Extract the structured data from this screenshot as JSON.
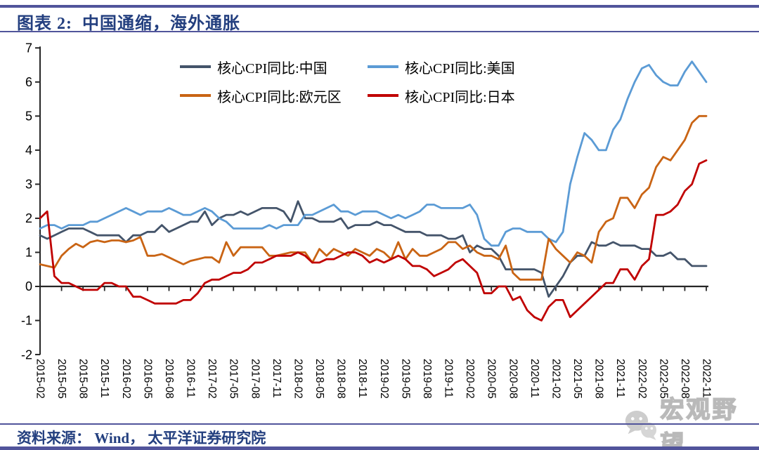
{
  "header": {
    "title": "图表 2:  中国通缩，海外通胀"
  },
  "footer": {
    "source": "资料来源： Wind， 太平洋证券研究院"
  },
  "watermark": {
    "label": "宏观野望",
    "icon": "wechat-icon"
  },
  "colors": {
    "rule": "#51549B",
    "heading_text": "#233F7F",
    "axis": "#262626",
    "tick_label": "#000000",
    "watermark_gray": "#c9c9c9"
  },
  "chart_data": {
    "type": "line",
    "title": "图表 2: 中国通缩，海外通胀",
    "xlabel": "",
    "ylabel": "",
    "ylim": [
      -2,
      7
    ],
    "y_ticks": [
      -2,
      -1,
      0,
      1,
      2,
      3,
      4,
      5,
      6,
      7
    ],
    "grid": false,
    "legend_position": "top-inside",
    "x_tick_every": 3,
    "x": [
      "2015-02",
      "2015-03",
      "2015-04",
      "2015-05",
      "2015-06",
      "2015-07",
      "2015-08",
      "2015-09",
      "2015-10",
      "2015-11",
      "2015-12",
      "2016-01",
      "2016-02",
      "2016-03",
      "2016-04",
      "2016-05",
      "2016-06",
      "2016-07",
      "2016-08",
      "2016-09",
      "2016-10",
      "2016-11",
      "2016-12",
      "2017-01",
      "2017-02",
      "2017-03",
      "2017-04",
      "2017-05",
      "2017-06",
      "2017-07",
      "2017-08",
      "2017-09",
      "2017-10",
      "2017-11",
      "2017-12",
      "2018-01",
      "2018-02",
      "2018-03",
      "2018-04",
      "2018-05",
      "2018-06",
      "2018-07",
      "2018-08",
      "2018-09",
      "2018-10",
      "2018-11",
      "2018-12",
      "2019-01",
      "2019-02",
      "2019-03",
      "2019-04",
      "2019-05",
      "2019-06",
      "2019-07",
      "2019-08",
      "2019-09",
      "2019-10",
      "2019-11",
      "2019-12",
      "2020-01",
      "2020-02",
      "2020-03",
      "2020-04",
      "2020-05",
      "2020-06",
      "2020-07",
      "2020-08",
      "2020-09",
      "2020-10",
      "2020-11",
      "2020-12",
      "2021-01",
      "2021-02",
      "2021-03",
      "2021-04",
      "2021-05",
      "2021-06",
      "2021-07",
      "2021-08",
      "2021-09",
      "2021-10",
      "2021-11",
      "2021-12",
      "2022-01",
      "2022-02",
      "2022-03",
      "2022-04",
      "2022-05",
      "2022-06",
      "2022-07",
      "2022-08",
      "2022-09",
      "2022-10",
      "2022-11"
    ],
    "series": [
      {
        "name": "核心CPI同比:中国",
        "color": "#44546A",
        "values": [
          1.5,
          1.4,
          1.5,
          1.6,
          1.7,
          1.7,
          1.7,
          1.6,
          1.5,
          1.5,
          1.5,
          1.5,
          1.3,
          1.5,
          1.5,
          1.6,
          1.6,
          1.8,
          1.6,
          1.7,
          1.8,
          1.9,
          1.9,
          2.2,
          1.8,
          2.0,
          2.1,
          2.1,
          2.2,
          2.1,
          2.2,
          2.3,
          2.3,
          2.3,
          2.2,
          1.9,
          2.5,
          2.0,
          2.0,
          1.9,
          1.9,
          1.9,
          2.0,
          1.7,
          1.8,
          1.8,
          1.8,
          1.9,
          1.8,
          1.8,
          1.7,
          1.6,
          1.6,
          1.6,
          1.5,
          1.5,
          1.5,
          1.4,
          1.4,
          1.5,
          1.0,
          1.2,
          1.1,
          1.1,
          0.9,
          0.5,
          0.5,
          0.5,
          0.5,
          0.5,
          0.4,
          -0.3,
          0.0,
          0.3,
          0.7,
          0.9,
          0.9,
          1.3,
          1.2,
          1.2,
          1.3,
          1.2,
          1.2,
          1.2,
          1.1,
          1.1,
          0.9,
          0.9,
          1.0,
          0.8,
          0.8,
          0.6,
          0.6,
          0.6
        ]
      },
      {
        "name": "核心CPI同比:美国",
        "color": "#5B9BD5",
        "values": [
          1.7,
          1.8,
          1.8,
          1.7,
          1.8,
          1.8,
          1.8,
          1.9,
          1.9,
          2.0,
          2.1,
          2.2,
          2.3,
          2.2,
          2.1,
          2.2,
          2.2,
          2.2,
          2.3,
          2.2,
          2.1,
          2.1,
          2.2,
          2.3,
          2.2,
          2.0,
          1.9,
          1.7,
          1.7,
          1.7,
          1.7,
          1.7,
          1.8,
          1.7,
          1.8,
          1.8,
          1.8,
          2.1,
          2.1,
          2.2,
          2.3,
          2.4,
          2.2,
          2.2,
          2.1,
          2.2,
          2.2,
          2.2,
          2.1,
          2.0,
          2.1,
          2.0,
          2.1,
          2.2,
          2.4,
          2.4,
          2.3,
          2.3,
          2.3,
          2.3,
          2.4,
          2.1,
          1.4,
          1.2,
          1.2,
          1.6,
          1.7,
          1.7,
          1.6,
          1.6,
          1.6,
          1.4,
          1.3,
          1.6,
          3.0,
          3.8,
          4.5,
          4.3,
          4.0,
          4.0,
          4.6,
          4.9,
          5.5,
          6.0,
          6.4,
          6.5,
          6.2,
          6.0,
          5.9,
          5.9,
          6.3,
          6.6,
          6.3,
          6.0
        ]
      },
      {
        "name": "核心CPI同比:欧元区",
        "color": "#C96414",
        "values": [
          0.65,
          0.6,
          0.55,
          0.9,
          1.1,
          1.25,
          1.15,
          1.3,
          1.35,
          1.3,
          1.35,
          1.35,
          1.3,
          1.35,
          1.45,
          0.9,
          0.9,
          0.95,
          0.85,
          0.75,
          0.65,
          0.75,
          0.8,
          0.85,
          0.85,
          0.7,
          1.3,
          0.9,
          1.15,
          1.15,
          1.15,
          1.15,
          0.9,
          0.9,
          0.95,
          1.0,
          1.0,
          1.0,
          0.7,
          1.1,
          0.9,
          1.1,
          1.0,
          0.9,
          1.1,
          1.0,
          0.9,
          1.1,
          1.0,
          0.8,
          1.3,
          0.8,
          1.1,
          0.9,
          0.9,
          1.0,
          1.1,
          1.3,
          1.3,
          1.1,
          1.2,
          1.0,
          0.9,
          0.9,
          0.8,
          1.2,
          0.4,
          0.2,
          0.2,
          0.2,
          0.2,
          1.4,
          1.1,
          0.9,
          0.7,
          1.0,
          0.9,
          0.7,
          1.6,
          1.9,
          2.0,
          2.6,
          2.6,
          2.3,
          2.7,
          2.9,
          3.5,
          3.8,
          3.7,
          4.0,
          4.3,
          4.8,
          5.0,
          5.0
        ]
      },
      {
        "name": "核心CPI同比:日本",
        "color": "#C00000",
        "values": [
          2.0,
          2.2,
          0.3,
          0.1,
          0.1,
          0.0,
          -0.1,
          -0.1,
          -0.1,
          0.1,
          0.1,
          0.0,
          0.0,
          -0.3,
          -0.3,
          -0.4,
          -0.5,
          -0.5,
          -0.5,
          -0.5,
          -0.4,
          -0.4,
          -0.2,
          0.1,
          0.2,
          0.2,
          0.3,
          0.4,
          0.4,
          0.5,
          0.7,
          0.7,
          0.8,
          0.9,
          0.9,
          0.9,
          1.0,
          0.9,
          0.7,
          0.7,
          0.8,
          0.8,
          0.9,
          1.0,
          1.0,
          0.9,
          0.7,
          0.8,
          0.7,
          0.8,
          0.9,
          0.8,
          0.6,
          0.6,
          0.5,
          0.3,
          0.4,
          0.5,
          0.7,
          0.8,
          0.6,
          0.4,
          -0.2,
          -0.2,
          0.0,
          0.0,
          -0.4,
          -0.3,
          -0.7,
          -0.9,
          -1.0,
          -0.6,
          -0.4,
          -0.4,
          -0.9,
          -0.7,
          -0.5,
          -0.3,
          -0.1,
          0.1,
          0.1,
          0.5,
          0.5,
          0.2,
          0.6,
          0.8,
          2.1,
          2.1,
          2.2,
          2.4,
          2.8,
          3.0,
          3.6,
          3.7
        ]
      }
    ]
  }
}
